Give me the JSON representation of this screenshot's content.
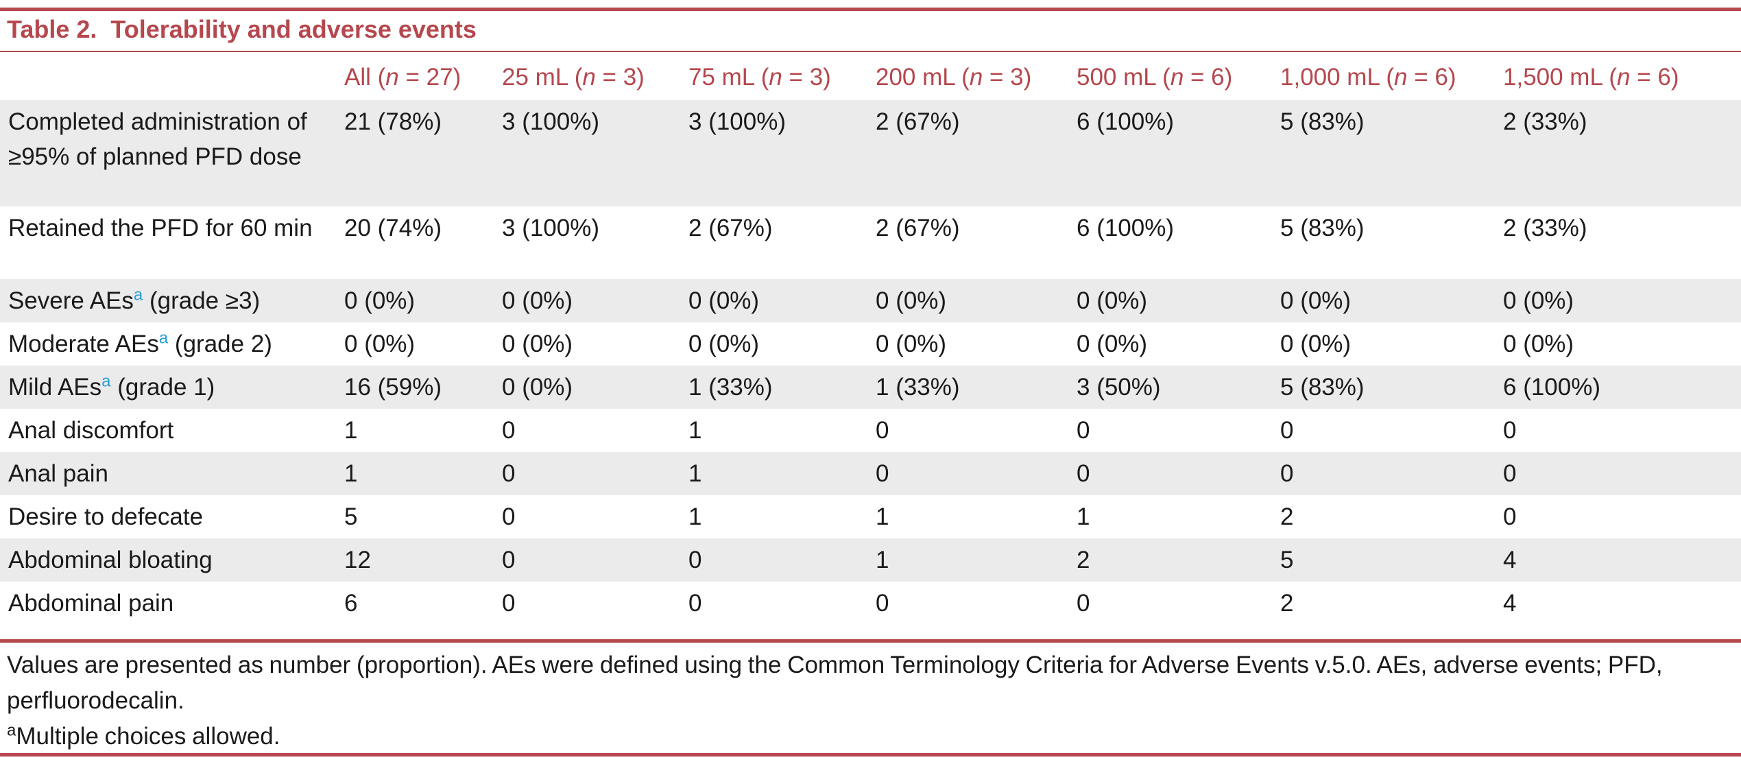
{
  "title": "Table 2.  Tolerability and adverse events",
  "table": {
    "headers": [
      [
        "All (",
        "n",
        " = 27)"
      ],
      [
        "25 mL (",
        "n",
        " = 3)"
      ],
      [
        "75 mL (",
        "n",
        " = 3)"
      ],
      [
        "200 mL (",
        "n",
        " = 3)"
      ],
      [
        "500 mL (",
        "n",
        " = 6)"
      ],
      [
        "1,000 mL (",
        "n",
        " = 6)"
      ],
      [
        "1,500 mL (",
        "n",
        " = 6)"
      ]
    ],
    "rows": [
      {
        "label": [
          "Completed administration of ≥95% of planned PFD dose"
        ],
        "cells": [
          "21 (78%)",
          "3 (100%)",
          "3 (100%)",
          "2 (67%)",
          "6 (100%)",
          "5 (83%)",
          "2 (33%)"
        ]
      },
      {
        "label": [
          "Retained the PFD for 60 min"
        ],
        "cells": [
          "20 (74%)",
          "3 (100%)",
          "2 (67%)",
          "2 (67%)",
          "6 (100%)",
          "5 (83%)",
          "2 (33%)"
        ]
      },
      {
        "label": [
          "Severe AEs",
          "a",
          " (grade ≥3)"
        ],
        "cells": [
          "0 (0%)",
          "0 (0%)",
          "0 (0%)",
          "0 (0%)",
          "0 (0%)",
          "0 (0%)",
          "0 (0%)"
        ]
      },
      {
        "label": [
          "Moderate AEs",
          "a",
          " (grade 2)"
        ],
        "cells": [
          "0 (0%)",
          "0 (0%)",
          "0 (0%)",
          "0 (0%)",
          "0 (0%)",
          "0 (0%)",
          "0 (0%)"
        ]
      },
      {
        "label": [
          "Mild AEs",
          "a",
          " (grade 1)"
        ],
        "cells": [
          "16 (59%)",
          "0 (0%)",
          "1 (33%)",
          "1 (33%)",
          "3 (50%)",
          "5 (83%)",
          "6 (100%)"
        ]
      },
      {
        "label": [
          "Anal discomfort"
        ],
        "cells": [
          1,
          0,
          1,
          0,
          0,
          0,
          0
        ]
      },
      {
        "label": [
          "Anal pain"
        ],
        "cells": [
          1,
          0,
          1,
          0,
          0,
          0,
          0
        ]
      },
      {
        "label": [
          "Desire to defecate"
        ],
        "cells": [
          5,
          0,
          1,
          1,
          1,
          2,
          0
        ]
      },
      {
        "label": [
          "Abdominal bloating"
        ],
        "cells": [
          12,
          0,
          0,
          1,
          2,
          5,
          4
        ]
      },
      {
        "label": [
          "Abdominal pain"
        ],
        "cells": [
          6,
          0,
          0,
          0,
          0,
          2,
          4
        ]
      }
    ]
  },
  "footnotes": [
    [
      "Values are presented as number (proportion). AEs were defined using the Common Terminology Criteria for Adverse Events v.5.0. AEs, adverse events; PFD, perfluorodecalin."
    ],
    [
      "a",
      "Multiple choices allowed."
    ]
  ]
}
